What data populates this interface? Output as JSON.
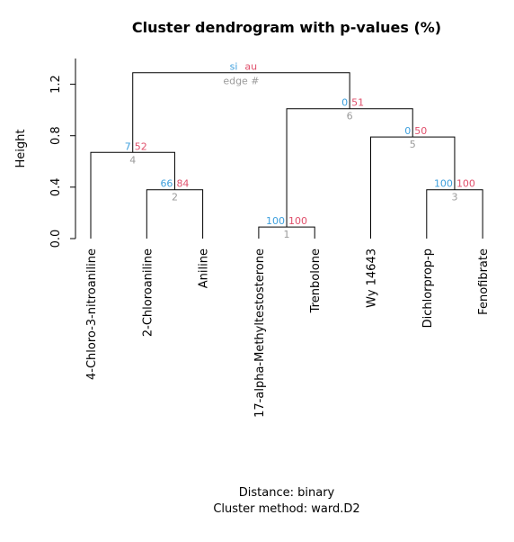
{
  "title": "Cluster dendrogram with p-values (%)",
  "ylabel": "Height",
  "footer": {
    "distance": "Distance:  binary",
    "method": "Cluster method: ward.D2"
  },
  "legend": {
    "si": "si",
    "au": "au",
    "edge": "edge #"
  },
  "colors": {
    "si": "#3fa0dd",
    "au": "#e0506c",
    "edge": "#9a9a9a",
    "line": "#000000"
  },
  "chart_data": {
    "type": "dendrogram",
    "ylim": [
      0,
      1.4
    ],
    "yticks": [
      0.0,
      0.4,
      0.8,
      1.2
    ],
    "ytick_labels": [
      "0.0",
      "0.4",
      "0.8",
      "1.2"
    ],
    "leaves": [
      "4-Chloro-3-nitroaniline",
      "2-Chloroaniline",
      "Aniline",
      "17-alpha-Methyltestosterone",
      "Trenbolone",
      "Wy 14643",
      "Dichlorprop-p",
      "Fenofibrate"
    ],
    "merges": [
      {
        "edge": "1",
        "left": "leaf:3",
        "right": "leaf:4",
        "height": 0.09,
        "si": "100",
        "au": "100"
      },
      {
        "edge": "2",
        "left": "leaf:1",
        "right": "leaf:2",
        "height": 0.38,
        "si": "66",
        "au": "84"
      },
      {
        "edge": "3",
        "left": "leaf:6",
        "right": "leaf:7",
        "height": 0.38,
        "si": "100",
        "au": "100"
      },
      {
        "edge": "4",
        "left": "leaf:0",
        "right": "node:2",
        "height": 0.67,
        "si": "7",
        "au": "52"
      },
      {
        "edge": "5",
        "left": "leaf:5",
        "right": "node:3",
        "height": 0.79,
        "si": "0",
        "au": "50"
      },
      {
        "edge": "6",
        "left": "node:1",
        "right": "node:5",
        "height": 1.01,
        "si": "0",
        "au": "51"
      },
      {
        "edge": "",
        "left": "node:4",
        "right": "node:6",
        "height": 1.29,
        "si": "",
        "au": ""
      }
    ]
  }
}
